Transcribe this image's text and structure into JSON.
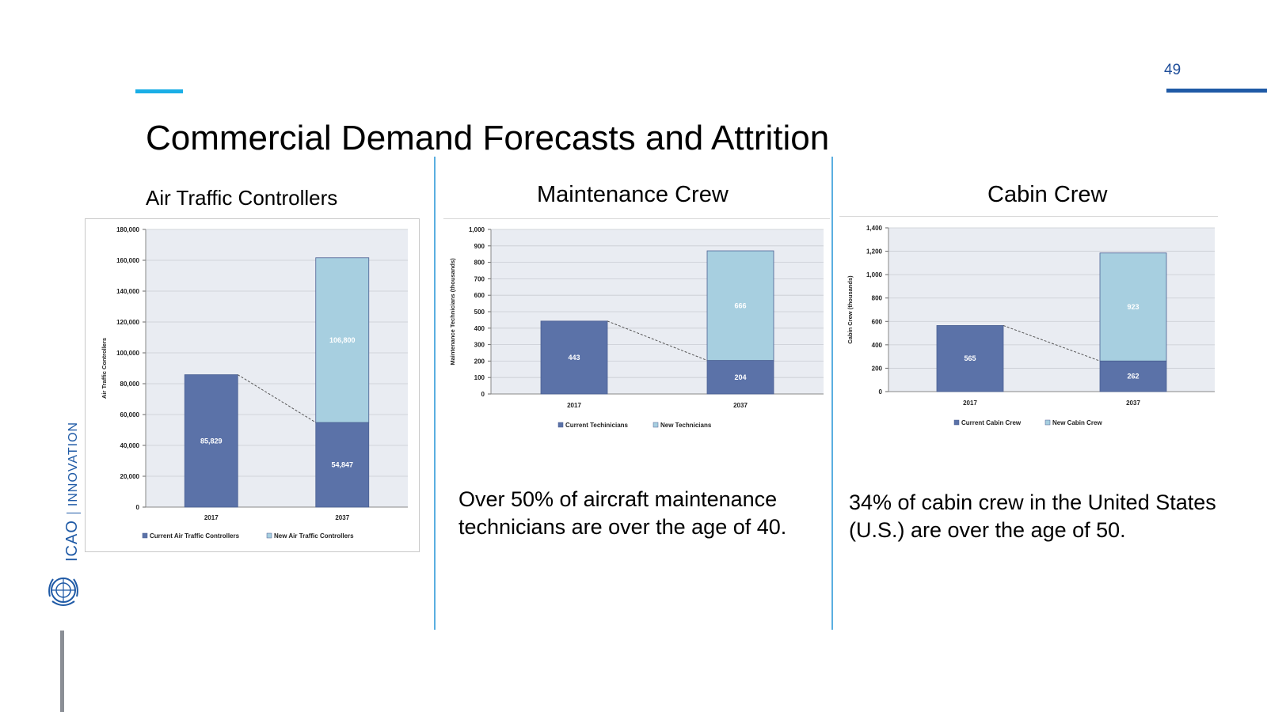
{
  "page": {
    "number": "49",
    "title": "Commercial Demand Forecasts and Attrition"
  },
  "sidebar": {
    "org": "ICAO",
    "tagline": "INNOVATION",
    "emblem_icon": "un-emblem-icon"
  },
  "sections": [
    {
      "title": "Air Traffic Controllers"
    },
    {
      "title": "Maintenance Crew",
      "text_lines": [
        "Over 50% of aircraft maintenance",
        "technicians are over the age of 40."
      ]
    },
    {
      "title": "Cabin Crew",
      "text_lines": [
        "34% of cabin crew in the United States",
        "(U.S.) are over the age of 50."
      ]
    }
  ],
  "colors": {
    "current": "#5b72a8",
    "new": "#a7cfe0",
    "plot_bg": "#e9ecf2",
    "accent": "#1aaee6",
    "divider": "#5aaee0"
  },
  "chart_data": [
    {
      "type": "bar",
      "stacked": true,
      "categories": [
        "2017",
        "2037"
      ],
      "series": [
        {
          "name": "Current Air Traffic Controllers",
          "values": [
            85829,
            54847
          ],
          "labels": [
            "85,829",
            "54,847"
          ]
        },
        {
          "name": "New Air Traffic Controllers",
          "values": [
            0,
            106800
          ],
          "labels": [
            "",
            "106,800"
          ]
        }
      ],
      "ylabel": "Air Traffic Controllers",
      "ylim": [
        0,
        180000
      ],
      "yticks": [
        "0",
        "20,000",
        "40,000",
        "60,000",
        "80,000",
        "100,000",
        "120,000",
        "140,000",
        "160,000",
        "180,000"
      ],
      "grid": true,
      "legend": "bottom",
      "trend_line": "dashed, from top of 2017 bar to top of 2037 current segment"
    },
    {
      "type": "bar",
      "stacked": true,
      "categories": [
        "2017",
        "2037"
      ],
      "series": [
        {
          "name": "Current Techinicians",
          "values": [
            443,
            204
          ],
          "labels": [
            "443",
            "204"
          ]
        },
        {
          "name": "New Technicians",
          "values": [
            0,
            666
          ],
          "labels": [
            "",
            "666"
          ]
        }
      ],
      "ylabel": "Maintenance Technicians (thousands)",
      "ylim": [
        0,
        1000
      ],
      "yticks": [
        "0",
        "100",
        "200",
        "300",
        "400",
        "500",
        "600",
        "700",
        "800",
        "900",
        "1,000"
      ],
      "grid": true,
      "legend": "bottom",
      "trend_line": "dashed, from top of 2017 bar to top of 2037 current segment"
    },
    {
      "type": "bar",
      "stacked": true,
      "categories": [
        "2017",
        "2037"
      ],
      "series": [
        {
          "name": "Current Cabin Crew",
          "values": [
            565,
            262
          ],
          "labels": [
            "565",
            "262"
          ]
        },
        {
          "name": "New Cabin Crew",
          "values": [
            0,
            923
          ],
          "labels": [
            "",
            "923"
          ]
        }
      ],
      "ylabel": "Cabin Crew (thousands)",
      "ylim": [
        0,
        1400
      ],
      "yticks": [
        "0",
        "200",
        "400",
        "600",
        "800",
        "1,000",
        "1,200",
        "1,400"
      ],
      "grid": true,
      "legend": "bottom",
      "trend_line": "dashed, from top of 2017 bar to top of 2037 current segment"
    }
  ]
}
